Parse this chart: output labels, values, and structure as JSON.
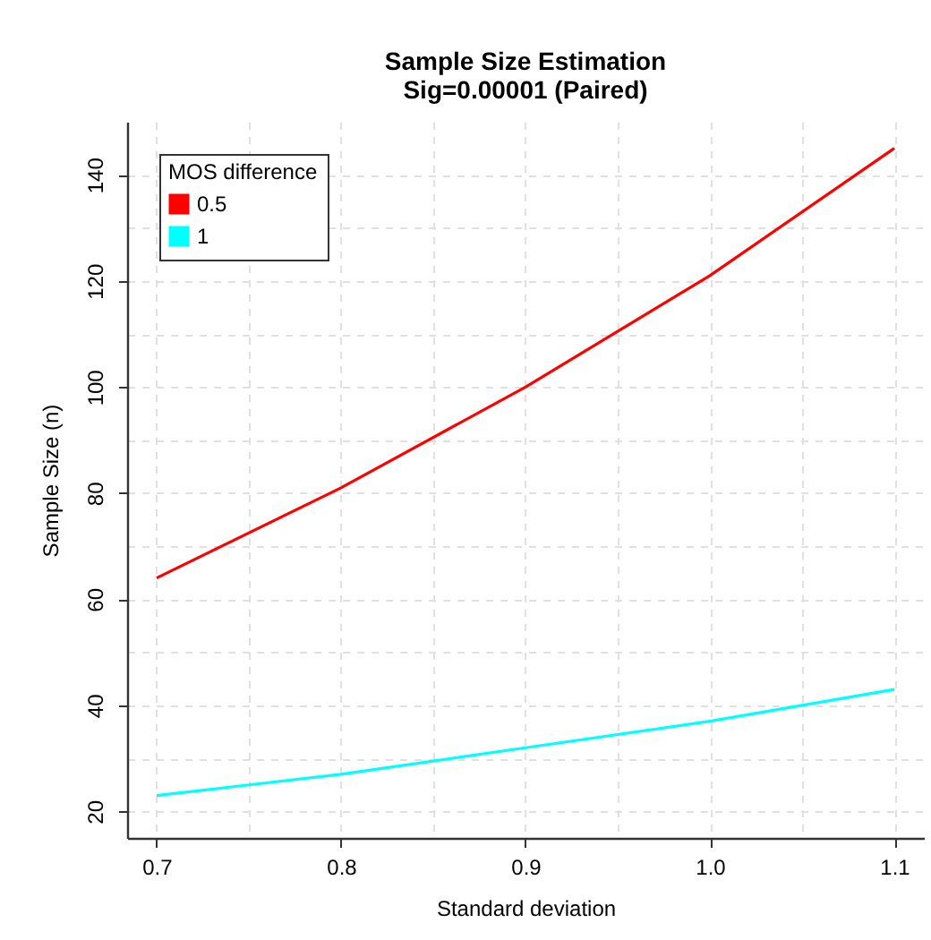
{
  "chart_data": {
    "type": "line",
    "title": "Sample Size Estimation",
    "subtitle": "Sig=0.00001 (Paired)",
    "xlabel": "Standard deviation",
    "ylabel": "Sample Size (n)",
    "legend_title": "MOS difference",
    "x": [
      0.7,
      0.8,
      0.9,
      1.0,
      1.1
    ],
    "series": [
      {
        "name": "0.5",
        "color": "#ff0000",
        "values": [
          64,
          81,
          100,
          121,
          145
        ]
      },
      {
        "name": "1",
        "color": "#00ffff",
        "values": [
          23,
          27,
          32,
          37,
          43
        ]
      }
    ],
    "xlim": [
      0.684,
      1.116
    ],
    "ylim": [
      15,
      150
    ],
    "xticks": [
      0.7,
      0.8,
      0.9,
      {
        "value": 1.0,
        "label": "1.0"
      },
      1.1
    ],
    "yticks": [
      20,
      40,
      60,
      80,
      100,
      120,
      140
    ],
    "grid": true,
    "legend": "top left",
    "marker": "none",
    "line_style": "solid"
  }
}
